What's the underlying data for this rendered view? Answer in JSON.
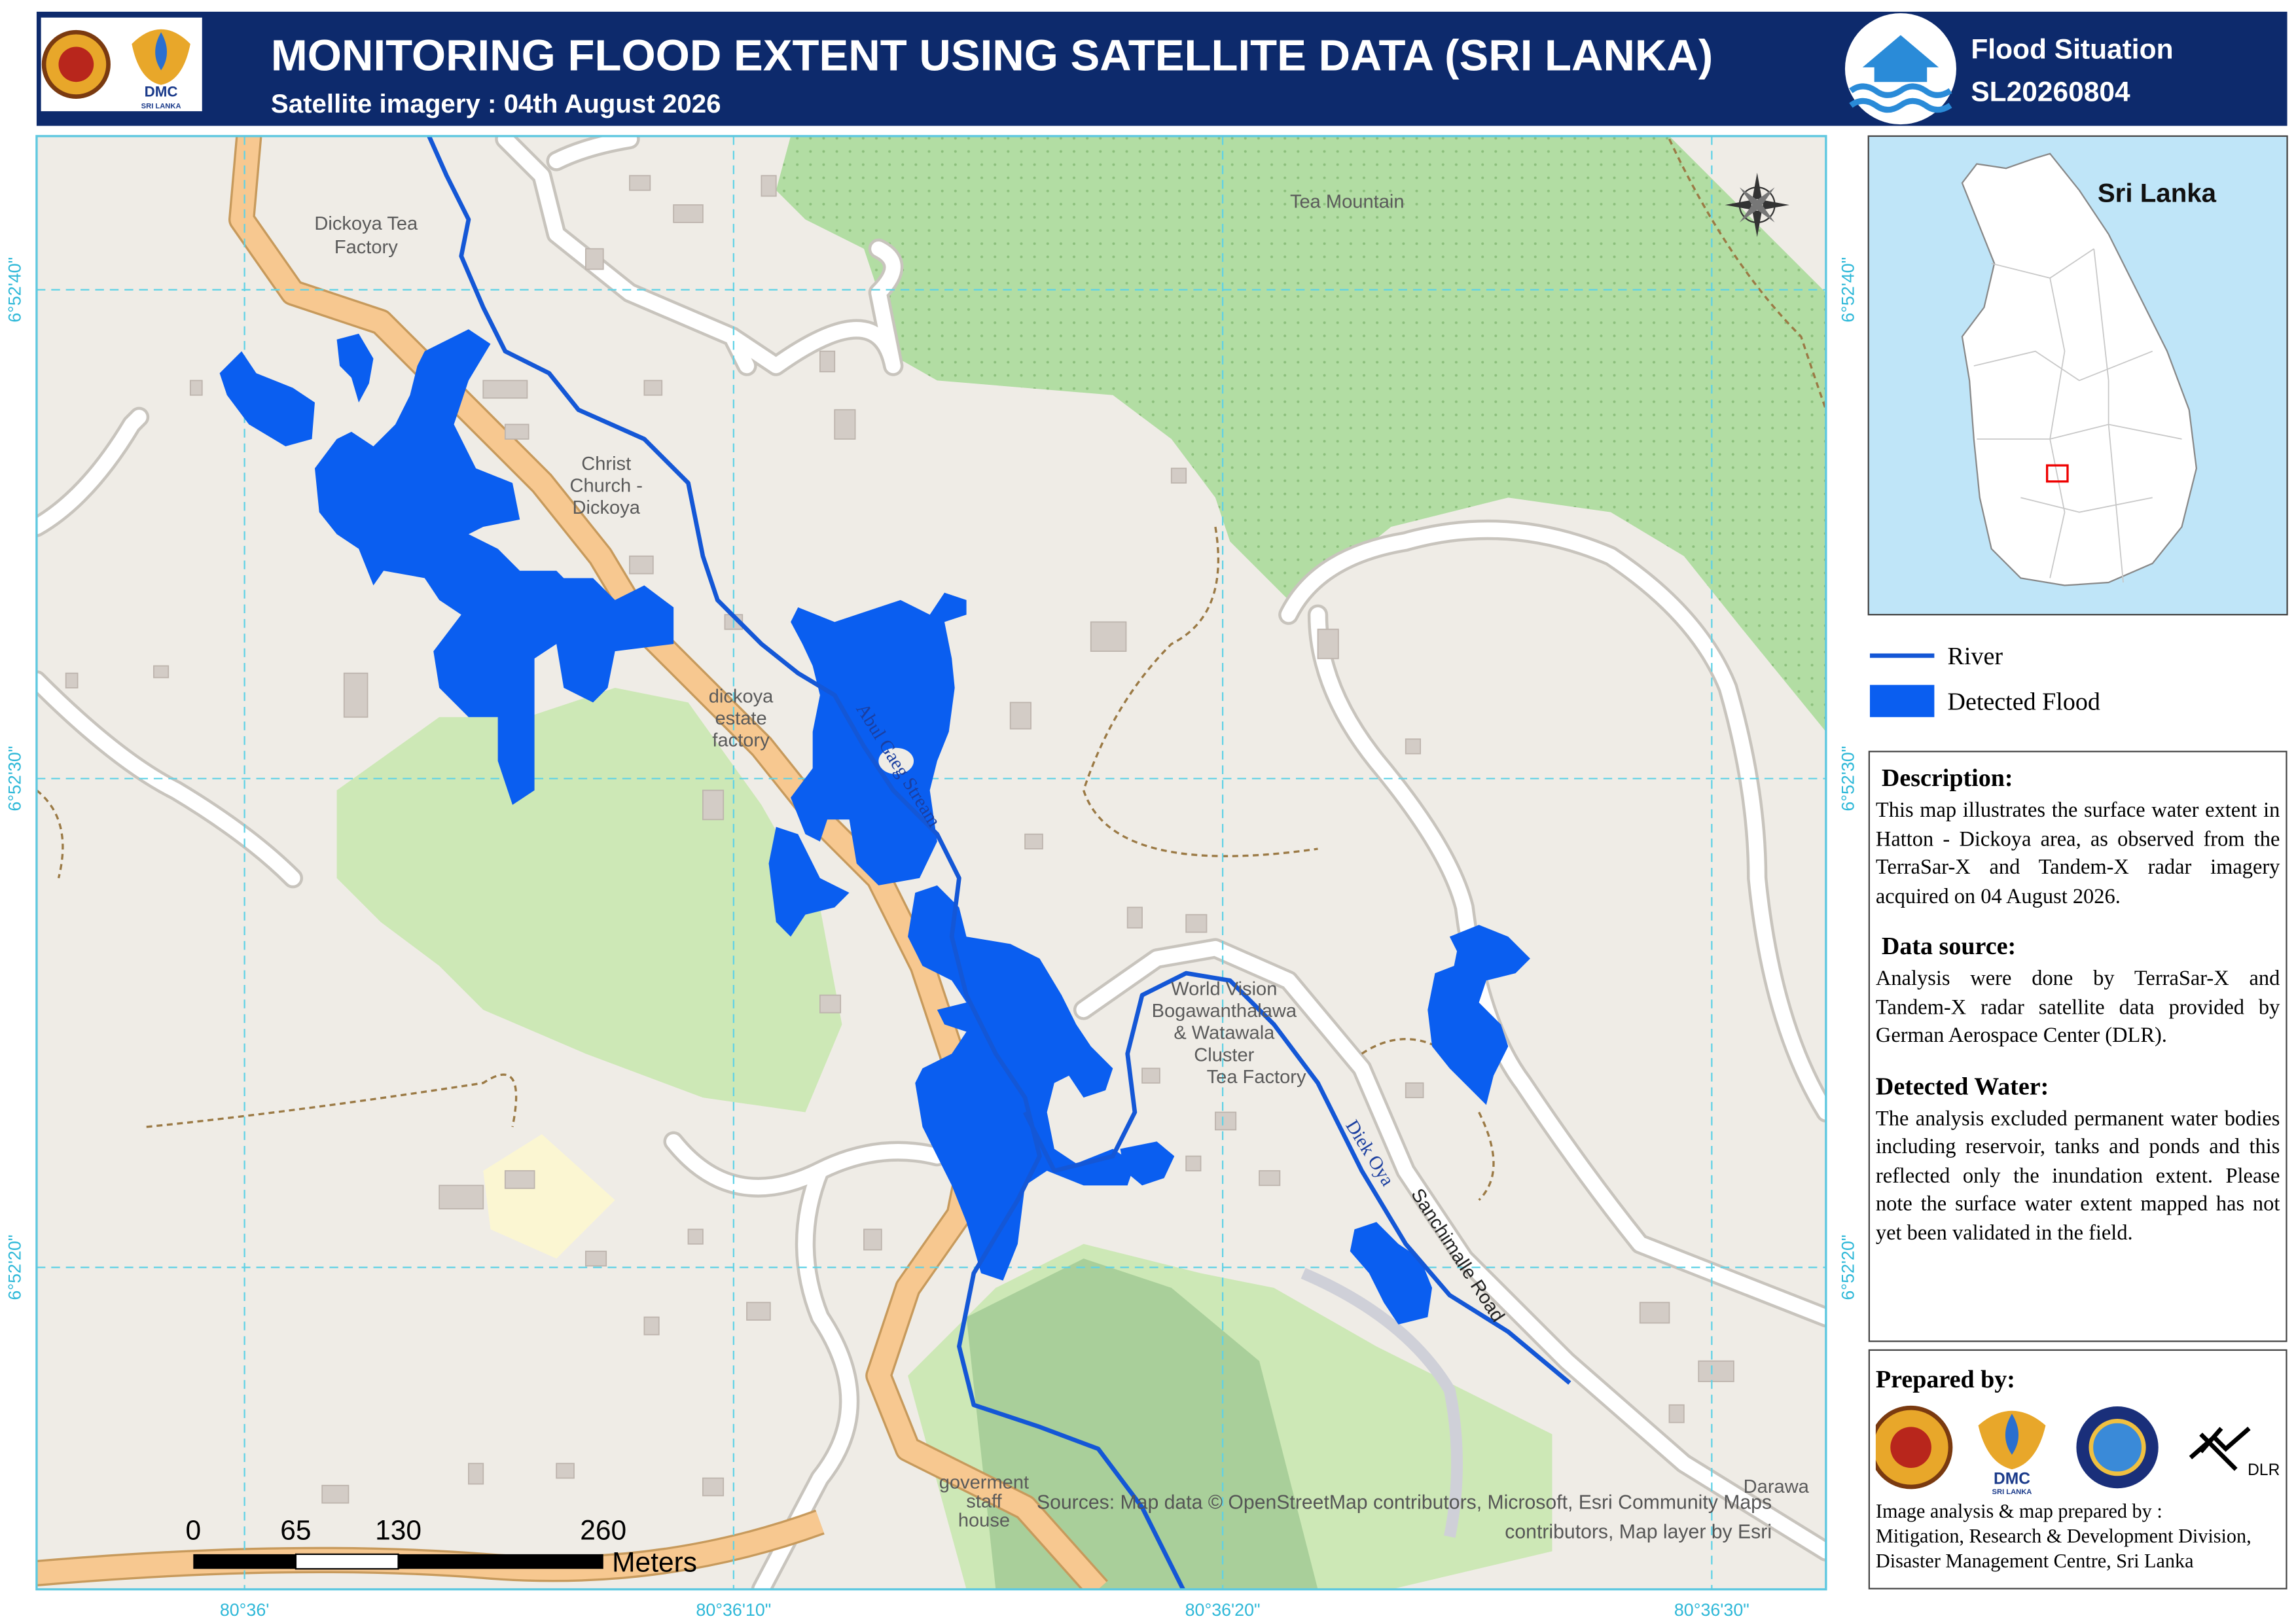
{
  "header": {
    "title": "MONITORING FLOOD EXTENT USING SATELLITE DATA (SRI LANKA)",
    "subtitle": "Satellite imagery : 04th August 2026",
    "logo_text": "DMC",
    "logo_subtext": "SRI LANKA",
    "situation_label": "Flood Situation",
    "situation_id": "SL20260804"
  },
  "map": {
    "labels": [
      {
        "lines": [
          "Dickoya Tea",
          "Factory"
        ]
      },
      {
        "lines": [
          "Tea Mountain"
        ]
      },
      {
        "lines": [
          "Christ",
          "Church -",
          "Dickoya"
        ]
      },
      {
        "lines": [
          "dickoya",
          "estate",
          "factory"
        ]
      },
      {
        "lines": [
          "Abul Gaeg Stream"
        ]
      },
      {
        "lines": [
          "World Vision",
          "Bogawanthalawa",
          "& Watawala",
          "Cluster",
          "Tea Factory"
        ]
      },
      {
        "lines": [
          "Diek Oya"
        ]
      },
      {
        "lines": [
          "Sanchimalle Road"
        ]
      },
      {
        "lines": [
          "goverment",
          "staff",
          "house"
        ]
      },
      {
        "lines": [
          "Darawa"
        ]
      }
    ],
    "attribution": [
      "Sources: Map data © OpenStreetMap contributors, Microsoft, Esri Community Maps",
      "contributors, Map layer by Esri"
    ],
    "lat_labels": [
      "6°52'40\"",
      "6°52'30\"",
      "6°52'20\""
    ],
    "lon_labels": [
      "80°36'",
      "80°36'10\"",
      "80°36'20\"",
      "80°36'30\""
    ],
    "scale_bar": {
      "ticks": [
        0,
        65,
        130,
        260
      ],
      "unit": "Meters"
    }
  },
  "inset": {
    "title": "Sri Lanka"
  },
  "legend": {
    "items": [
      "River",
      "Detected Flood"
    ]
  },
  "description": {
    "heading": "Description:",
    "text": "This map illustrates the surface water extent in Hatton - Dickoya area, as observed from the TerraSar-X and Tandem-X radar imagery acquired on 04 August 2026."
  },
  "data_source": {
    "heading": "Data source:",
    "text": "Analysis were done by TerraSar-X and Tandem-X radar satellite data provided by German Aerospace Center (DLR)."
  },
  "detected_water": {
    "heading": "Detected Water:",
    "text": "The analysis excluded permanent water bodies including reservoir, tanks and ponds and this reflected only the inundation extent. Please note the surface water extent mapped has not yet been validated in the field."
  },
  "prepared_by": {
    "heading": "Prepared by:",
    "logo_text": "DMC",
    "logo_subtext": "SRI LANKA",
    "partner": "DLR",
    "credits": [
      "Image analysis & map prepared by :",
      "Mitigation, Research & Development Division,",
      "Disaster Management Centre, Sri Lanka"
    ]
  }
}
